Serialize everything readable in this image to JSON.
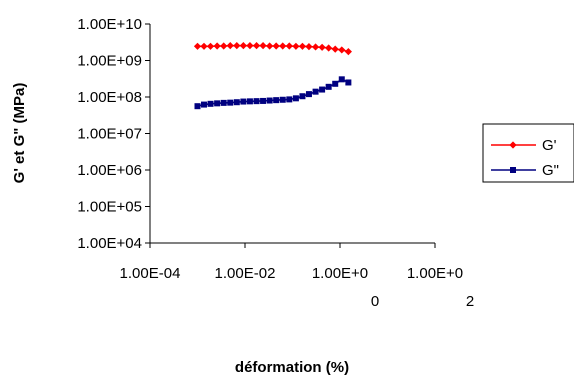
{
  "chart_data": {
    "type": "scatter",
    "title": "",
    "xlabel": "déformation (%)",
    "ylabel": "G' et G\" (MPa)",
    "x_scale": "log",
    "y_scale": "log",
    "xlim": [
      0.0001,
      100
    ],
    "ylim": [
      10000,
      10000000000
    ],
    "x_ticks": [
      {
        "value": 0.0001,
        "lines": [
          "1.00E-04"
        ]
      },
      {
        "value": 0.01,
        "lines": [
          "1.00E-02"
        ]
      },
      {
        "value": 1,
        "lines": [
          "1.00E+0",
          "0"
        ]
      },
      {
        "value": 100,
        "lines": [
          "1.00E+0",
          "2"
        ]
      }
    ],
    "y_ticks": [
      {
        "value": 10000,
        "label": "1.00E+04"
      },
      {
        "value": 100000,
        "label": "1.00E+05"
      },
      {
        "value": 1000000,
        "label": "1.00E+06"
      },
      {
        "value": 10000000,
        "label": "1.00E+07"
      },
      {
        "value": 100000000,
        "label": "1.00E+08"
      },
      {
        "value": 1000000000,
        "label": "1.00E+09"
      },
      {
        "value": 10000000000,
        "label": "1.00E+10"
      }
    ],
    "grid": false,
    "legend_position": "right",
    "series": [
      {
        "name": "G'",
        "color": "#ff0000",
        "marker": "diamond",
        "points": [
          [
            0.001,
            2450000000.0
          ],
          [
            0.00137,
            2450000000.0
          ],
          [
            0.00188,
            2450000000.0
          ],
          [
            0.00259,
            2500000000.0
          ],
          [
            0.00356,
            2500000000.0
          ],
          [
            0.00489,
            2550000000.0
          ],
          [
            0.00672,
            2550000000.0
          ],
          [
            0.00924,
            2550000000.0
          ],
          [
            0.0127,
            2550000000.0
          ],
          [
            0.0175,
            2550000000.0
          ],
          [
            0.024,
            2550000000.0
          ],
          [
            0.033,
            2500000000.0
          ],
          [
            0.0453,
            2500000000.0
          ],
          [
            0.0623,
            2500000000.0
          ],
          [
            0.0857,
            2500000000.0
          ],
          [
            0.118,
            2450000000.0
          ],
          [
            0.162,
            2450000000.0
          ],
          [
            0.222,
            2400000000.0
          ],
          [
            0.306,
            2350000000.0
          ],
          [
            0.42,
            2300000000.0
          ],
          [
            0.577,
            2200000000.0
          ],
          [
            0.793,
            2050000000.0
          ],
          [
            1.09,
            1950000000.0
          ],
          [
            1.5,
            1750000000.0
          ]
        ]
      },
      {
        "name": "G\"",
        "color": "#000080",
        "marker": "square",
        "points": [
          [
            0.001,
            56000000.0
          ],
          [
            0.00137,
            62000000.0
          ],
          [
            0.00188,
            65000000.0
          ],
          [
            0.00259,
            67000000.0
          ],
          [
            0.00356,
            69000000.0
          ],
          [
            0.00489,
            70000000.0
          ],
          [
            0.00672,
            72000000.0
          ],
          [
            0.00924,
            75000000.0
          ],
          [
            0.0127,
            76000000.0
          ],
          [
            0.0175,
            77000000.0
          ],
          [
            0.024,
            78000000.0
          ],
          [
            0.033,
            80000000.0
          ],
          [
            0.0453,
            82000000.0
          ],
          [
            0.0623,
            84000000.0
          ],
          [
            0.0857,
            86000000.0
          ],
          [
            0.118,
            92000000.0
          ],
          [
            0.162,
            105000000.0
          ],
          [
            0.222,
            120000000.0
          ],
          [
            0.306,
            140000000.0
          ],
          [
            0.42,
            160000000.0
          ],
          [
            0.577,
            190000000.0
          ],
          [
            0.793,
            230000000.0
          ],
          [
            1.09,
            305000000.0
          ],
          [
            1.5,
            250000000.0
          ]
        ]
      }
    ]
  }
}
